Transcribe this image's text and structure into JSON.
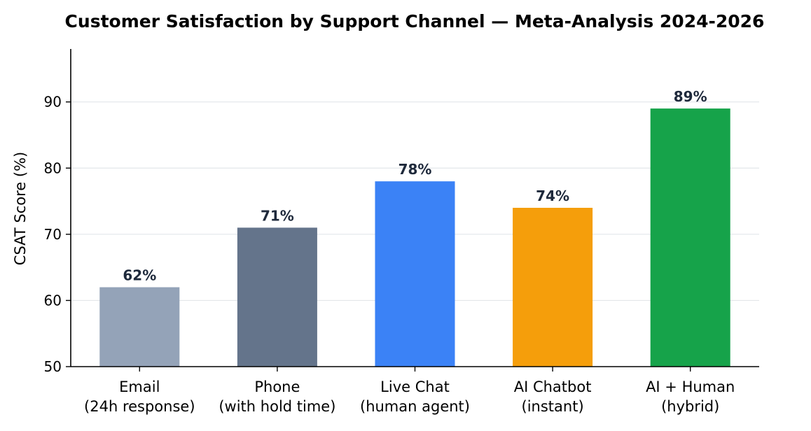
{
  "chart_data": {
    "type": "bar",
    "title": "Customer Satisfaction by Support Channel — Meta-Analysis 2024-2026",
    "xlabel": "",
    "ylabel": "CSAT Score (%)",
    "ylim": [
      50,
      98
    ],
    "yticks": [
      50,
      60,
      70,
      80,
      90
    ],
    "grid": "horizontal",
    "categories": [
      [
        "Email",
        "(24h response)"
      ],
      [
        "Phone",
        "(with hold time)"
      ],
      [
        "Live Chat",
        "(human agent)"
      ],
      [
        "AI Chatbot",
        "(instant)"
      ],
      [
        "AI + Human",
        "(hybrid)"
      ]
    ],
    "values": [
      62,
      71,
      78,
      74,
      89
    ],
    "value_labels": [
      "62%",
      "71%",
      "78%",
      "74%",
      "89%"
    ],
    "colors": [
      "#94a3b8",
      "#64748b",
      "#3b82f6",
      "#f59e0b",
      "#16a34a"
    ],
    "label_color": "#1e293b"
  }
}
